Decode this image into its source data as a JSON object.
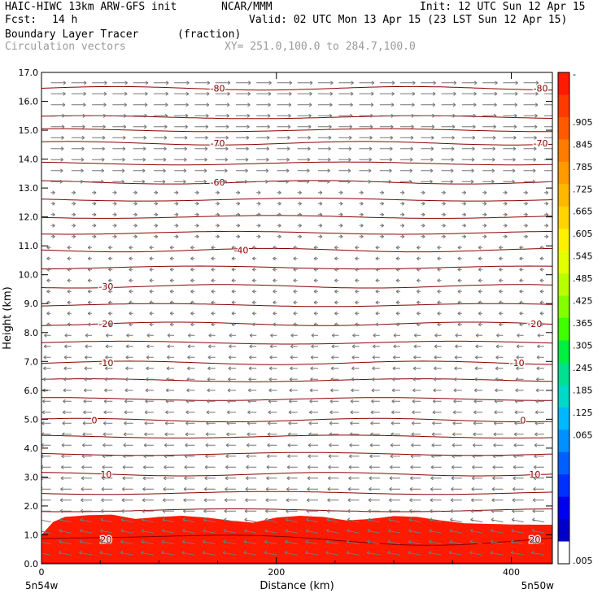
{
  "header": {
    "model_line": "HAIC-HIWC 13km ARW-GFS init",
    "org": "NCAR/MMM",
    "init": "Init: 12 UTC Sun 12 Apr 15",
    "fcst_label": "Fcst:",
    "fcst_value": "14 h",
    "valid": "Valid: 02 UTC Mon 13 Apr 15 (23 LST Sun 12 Apr 15)",
    "field": "Boundary Layer Tracer",
    "field_units": "(fraction)",
    "overlay": "Circulation vectors",
    "xy": "XY= 251.0,100.0 to 284.7,100.0"
  },
  "chart_data": {
    "type": "heatmap",
    "xlabel": "Distance (km)",
    "ylabel": "Height (km)",
    "xlim": [
      0,
      435
    ],
    "ylim": [
      0.0,
      17.0
    ],
    "x_ticks": [
      0,
      200,
      400
    ],
    "y_ticks": [
      0.0,
      1.0,
      2.0,
      3.0,
      4.0,
      5.0,
      6.0,
      7.0,
      8.0,
      9.0,
      10.0,
      11.0,
      12.0,
      13.0,
      14.0,
      15.0,
      16.0,
      17.0
    ],
    "endpoint_labels": [
      "5n54w",
      "5n50w"
    ],
    "colorbar": {
      "labels": [
        "-",
        ".905",
        ".845",
        ".785",
        ".725",
        ".665",
        ".605",
        ".545",
        ".485",
        ".425",
        ".365",
        ".305",
        ".245",
        ".185",
        ".125",
        ".065",
        ".005"
      ],
      "colors": [
        "#ff1a00",
        "#ff3a00",
        "#ff5a00",
        "#ff7c00",
        "#ff9a00",
        "#ffb800",
        "#ffd400",
        "#fff000",
        "#e4ff00",
        "#b8ff00",
        "#84ff00",
        "#40ff00",
        "#00f040",
        "#00e090",
        "#00d8c8",
        "#00b8ff",
        "#0090ff",
        "#0060ff",
        "#0030ff",
        "#0000f0",
        "#0000c8",
        "#ffffff"
      ]
    },
    "tracer_profile": {
      "x_km": [
        0,
        10,
        20,
        40,
        60,
        80,
        100,
        120,
        140,
        160,
        180,
        200,
        220,
        240,
        260,
        280,
        300,
        320,
        340,
        360,
        380,
        400,
        420,
        435
      ],
      "blue_top_km": [
        1.0,
        1.45,
        1.62,
        1.68,
        1.7,
        1.55,
        1.62,
        1.66,
        1.6,
        1.5,
        1.42,
        1.6,
        1.66,
        1.62,
        1.5,
        1.55,
        1.65,
        1.62,
        1.5,
        1.4,
        1.38,
        1.36,
        1.35,
        1.35
      ],
      "red_top_km": [
        0.82,
        0.86,
        0.9,
        0.98,
        0.95,
        0.9,
        0.88,
        0.87,
        0.85,
        0.8,
        0.75,
        0.8,
        0.82,
        0.8,
        0.75,
        0.78,
        0.82,
        0.8,
        0.75,
        0.7,
        0.68,
        0.66,
        0.65,
        0.65
      ]
    },
    "contours": [
      {
        "label": "-80",
        "y_km": 16.45,
        "label_x_km": [
          150,
          425
        ]
      },
      {
        "label": "-70",
        "y_km": 14.55,
        "label_x_km": [
          150,
          425
        ]
      },
      {
        "label": "-60",
        "y_km": 13.2,
        "label_x_km": [
          150
        ]
      },
      {
        "label": "-40",
        "y_km": 10.85,
        "label_x_km": [
          170
        ]
      },
      {
        "label": "-30",
        "y_km": 9.6,
        "label_x_km": [
          55
        ]
      },
      {
        "label": "-20",
        "y_km": 8.3,
        "label_x_km": [
          55,
          420
        ]
      },
      {
        "label": "-10",
        "y_km": 6.95,
        "label_x_km": [
          55,
          405
        ]
      },
      {
        "label": "0",
        "y_km": 4.97,
        "label_x_km": [
          45,
          410
        ]
      },
      {
        "label": "10",
        "y_km": 3.1,
        "label_x_km": [
          55,
          420
        ]
      },
      {
        "label": "20",
        "y_km": 0.85,
        "label_x_km": [
          55,
          420
        ]
      }
    ]
  }
}
